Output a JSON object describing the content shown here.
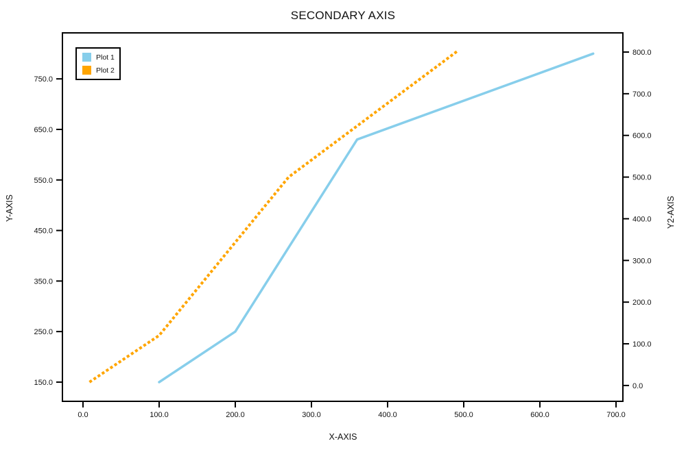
{
  "page": {
    "background": "#ffffff"
  },
  "chart_data": {
    "type": "line",
    "title": "SECONDARY AXIS",
    "xlabel": "X-AXIS",
    "ylabel": "Y-AXIS",
    "y2label": "Y2-AXIS",
    "grid": false,
    "frame_color": "#000000",
    "legend": {
      "position": "top-left",
      "border_color": "#000000",
      "background": "#ffffff"
    },
    "x_axis": {
      "range": [
        -27,
        709
      ],
      "ticks": [
        0,
        100,
        200,
        300,
        400,
        500,
        600,
        700
      ],
      "decimals": 1
    },
    "y_axis": {
      "range": [
        112,
        841
      ],
      "ticks": [
        150,
        250,
        350,
        450,
        550,
        650,
        750
      ],
      "decimals": 1
    },
    "y2_axis": {
      "range": [
        -38,
        846
      ],
      "ticks": [
        0,
        100,
        200,
        300,
        400,
        500,
        600,
        700,
        800
      ],
      "decimals": 1
    },
    "series": [
      {
        "name": "Plot 1",
        "color": "#87CEEB",
        "line_style": "solid",
        "y_axis": "left",
        "points": [
          [
            100,
            150
          ],
          [
            200,
            250
          ],
          [
            360,
            630
          ],
          [
            670,
            800
          ]
        ]
      },
      {
        "name": "Plot 2",
        "color": "#FFA500",
        "line_style": "dotted",
        "y_axis": "right",
        "points": [
          [
            10,
            10
          ],
          [
            100,
            120
          ],
          [
            270,
            500
          ],
          [
            490,
            800
          ]
        ]
      }
    ]
  }
}
